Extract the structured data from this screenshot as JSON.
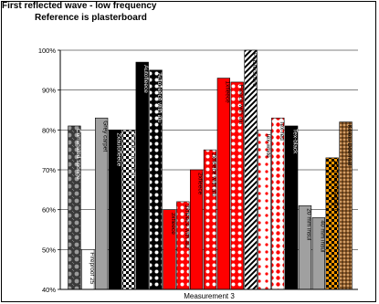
{
  "chart_data": {
    "type": "bar",
    "title": "First reflected wave - low frequency",
    "subtitle": "Reference is plasterboard",
    "xlabel": "Measurement 3",
    "ylabel": "",
    "ylim": [
      40,
      100
    ],
    "yticks": [
      "40%",
      "50%",
      "60%",
      "70%",
      "80%",
      "90%",
      "100%"
    ],
    "grid": true,
    "categories": [
      "Corrugated sponge",
      "Fireproof 25",
      "Grey carpet",
      "2xautofleece",
      "2xautofleece with alu",
      "Autofleece",
      "Autofleece with alu",
      "3xfleece",
      "3xfleece with alu",
      "2xfleece",
      "2xfleece with alu",
      "1xfleece",
      "Fleece with alu",
      "Plasterboard",
      "Tex-white",
      "Tex-red",
      "Tex-black",
      "20 mm insul",
      "40 mm insul",
      "25 mm cornerboard",
      "Kokos Doormat"
    ],
    "values": [
      81,
      50,
      83,
      80,
      80,
      97,
      95,
      60,
      62,
      70,
      75,
      93,
      92,
      100,
      80,
      83,
      81,
      61,
      58,
      73,
      82
    ],
    "patterns": [
      "dots-dark",
      "solid-light",
      "solid-gray",
      "solid-black",
      "checker",
      "solid-black",
      "polka-white",
      "solid-red",
      "polka-red",
      "solid-red",
      "polka-red",
      "solid-red",
      "polka-red",
      "diagonal",
      "polka-sparse-red",
      "polka-white-red",
      "solid-black",
      "solid-gray",
      "solid-gray",
      "checker-orange",
      "weave-brown"
    ]
  }
}
